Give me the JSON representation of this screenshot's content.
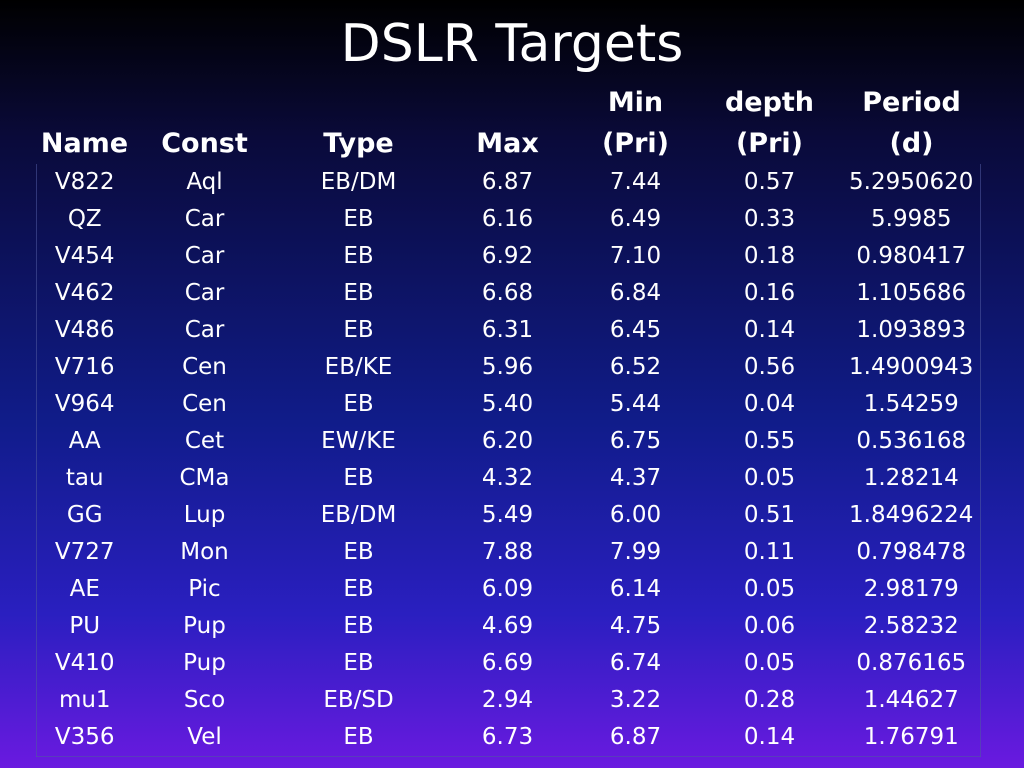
{
  "title": "DSLR Targets",
  "table": {
    "headers": [
      {
        "line1": "",
        "line2": "Name"
      },
      {
        "line1": "",
        "line2": "Const"
      },
      {
        "line1": "",
        "line2": "Type"
      },
      {
        "line1": "",
        "line2": "Max"
      },
      {
        "line1": "Min",
        "line2": "(Pri)"
      },
      {
        "line1": "depth",
        "line2": "(Pri)"
      },
      {
        "line1": "Period",
        "line2": "(d)"
      }
    ],
    "rows": [
      [
        "V822",
        "Aql",
        "EB/DM",
        "6.87",
        "7.44",
        "0.57",
        "5.2950620"
      ],
      [
        "QZ",
        "Car",
        "EB",
        "6.16",
        "6.49",
        "0.33",
        "5.9985"
      ],
      [
        "V454",
        "Car",
        "EB",
        "6.92",
        "7.10",
        "0.18",
        "0.980417"
      ],
      [
        "V462",
        "Car",
        "EB",
        "6.68",
        "6.84",
        "0.16",
        "1.105686"
      ],
      [
        "V486",
        "Car",
        "EB",
        "6.31",
        "6.45",
        "0.14",
        "1.093893"
      ],
      [
        "V716",
        "Cen",
        "EB/KE",
        "5.96",
        "6.52",
        "0.56",
        "1.4900943"
      ],
      [
        "V964",
        "Cen",
        "EB",
        "5.40",
        "5.44",
        "0.04",
        "1.54259"
      ],
      [
        "AA",
        "Cet",
        "EW/KE",
        "6.20",
        "6.75",
        "0.55",
        "0.536168"
      ],
      [
        "tau",
        "CMa",
        "EB",
        "4.32",
        "4.37",
        "0.05",
        "1.28214"
      ],
      [
        "GG",
        "Lup",
        "EB/DM",
        "5.49",
        "6.00",
        "0.51",
        "1.8496224"
      ],
      [
        "V727",
        "Mon",
        "EB",
        "7.88",
        "7.99",
        "0.11",
        "0.798478"
      ],
      [
        "AE",
        "Pic",
        "EB",
        "6.09",
        "6.14",
        "0.05",
        "2.98179"
      ],
      [
        "PU",
        "Pup",
        "EB",
        "4.69",
        "4.75",
        "0.06",
        "2.58232"
      ],
      [
        "V410",
        "Pup",
        "EB",
        "6.69",
        "6.74",
        "0.05",
        "0.876165"
      ],
      [
        "mu1",
        "Sco",
        "EB/SD",
        "2.94",
        "3.22",
        "0.28",
        "1.44627"
      ],
      [
        "V356",
        "Vel",
        "EB",
        "6.73",
        "6.87",
        "0.14",
        "1.76791"
      ]
    ]
  }
}
